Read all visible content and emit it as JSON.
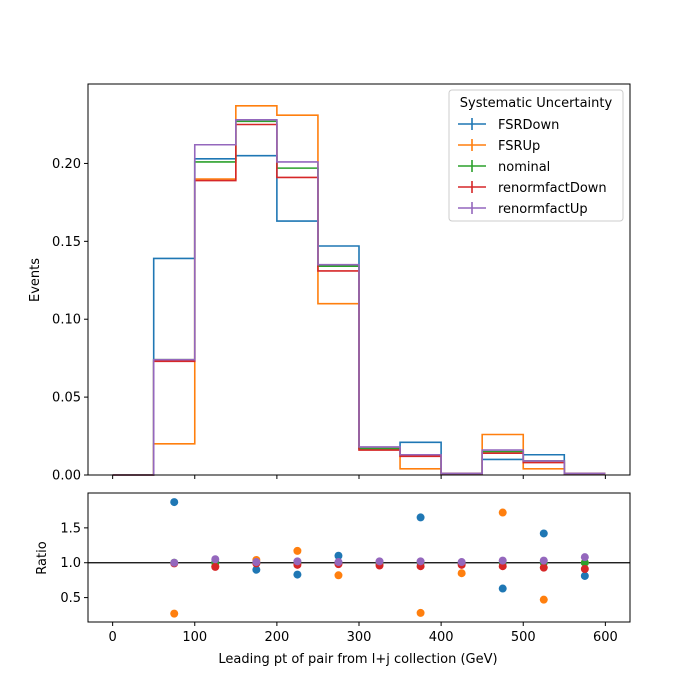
{
  "chart_data": [
    {
      "type": "line",
      "drawstyle": "step-histogram",
      "ylabel": "Events",
      "xlim": [
        -30,
        630
      ],
      "ylim": [
        0,
        0.251
      ],
      "y_ticks": [
        0.0,
        0.05,
        0.1,
        0.15,
        0.2
      ],
      "y_tick_labels": [
        "0.00",
        "0.05",
        "0.10",
        "0.15",
        "0.20"
      ],
      "x_ticks": [
        0,
        100,
        200,
        300,
        400,
        500,
        600
      ],
      "bin_edges": [
        0,
        50,
        100,
        150,
        200,
        250,
        300,
        350,
        400,
        450,
        500,
        550,
        600
      ],
      "legend": {
        "title": "Systematic Uncertainty",
        "placement": "top-right"
      },
      "series": [
        {
          "name": "FSRDown",
          "color": "#1f77b4",
          "values": [
            0.0,
            0.139,
            0.203,
            0.205,
            0.163,
            0.147,
            0.017,
            0.021,
            0.001,
            0.01,
            0.013,
            0.001
          ]
        },
        {
          "name": "FSRUp",
          "color": "#ff7f0e",
          "values": [
            0.0,
            0.02,
            0.19,
            0.237,
            0.231,
            0.11,
            0.017,
            0.004,
            0.001,
            0.026,
            0.004,
            0.001
          ]
        },
        {
          "name": "nominal",
          "color": "#2ca02c",
          "values": [
            0.0,
            0.074,
            0.201,
            0.227,
            0.197,
            0.134,
            0.017,
            0.013,
            0.001,
            0.015,
            0.009,
            0.001
          ]
        },
        {
          "name": "renormfactDown",
          "color": "#d62728",
          "values": [
            0.0,
            0.073,
            0.189,
            0.225,
            0.191,
            0.131,
            0.016,
            0.012,
            0.001,
            0.014,
            0.008,
            0.001
          ]
        },
        {
          "name": "renormfactUp",
          "color": "#9467bd",
          "values": [
            0.0,
            0.074,
            0.212,
            0.228,
            0.201,
            0.135,
            0.018,
            0.013,
            0.001,
            0.016,
            0.009,
            0.001
          ]
        }
      ]
    },
    {
      "type": "scatter",
      "xlabel": "Leading pt of pair from l+j collection (GeV)",
      "ylabel": "Ratio",
      "xlim": [
        -30,
        630
      ],
      "ylim": [
        0.15,
        2.0
      ],
      "y_ticks": [
        0.5,
        1.0,
        1.5
      ],
      "y_tick_labels": [
        "0.5",
        "1.0",
        "1.5"
      ],
      "x_ticks": [
        0,
        100,
        200,
        300,
        400,
        500,
        600
      ],
      "x_tick_labels": [
        "0",
        "100",
        "200",
        "300",
        "400",
        "500",
        "600"
      ],
      "reference_line": 1.0,
      "x": [
        75,
        125,
        175,
        225,
        275,
        325,
        375,
        425,
        475,
        525,
        575
      ],
      "series": [
        {
          "name": "FSRDown",
          "color": "#1f77b4",
          "values": [
            1.87,
            1.01,
            0.9,
            0.83,
            1.1,
            0.99,
            1.65,
            0.99,
            0.63,
            1.42,
            0.81
          ]
        },
        {
          "name": "FSRUp",
          "color": "#ff7f0e",
          "values": [
            0.27,
            0.95,
            1.04,
            1.17,
            0.82,
            0.99,
            0.28,
            0.85,
            1.72,
            0.47,
            1.0
          ]
        },
        {
          "name": "nominal",
          "color": "#2ca02c",
          "values": [
            1.0,
            1.0,
            1.0,
            1.0,
            1.0,
            1.0,
            1.0,
            1.0,
            1.0,
            1.0,
            1.0
          ]
        },
        {
          "name": "renormfactDown",
          "color": "#d62728",
          "values": [
            0.99,
            0.94,
            0.99,
            0.97,
            0.98,
            0.96,
            0.95,
            0.97,
            0.95,
            0.93,
            0.91
          ]
        },
        {
          "name": "renormfactUp",
          "color": "#9467bd",
          "values": [
            1.0,
            1.05,
            1.01,
            1.02,
            1.01,
            1.02,
            1.02,
            1.01,
            1.03,
            1.03,
            1.08
          ]
        }
      ]
    }
  ]
}
